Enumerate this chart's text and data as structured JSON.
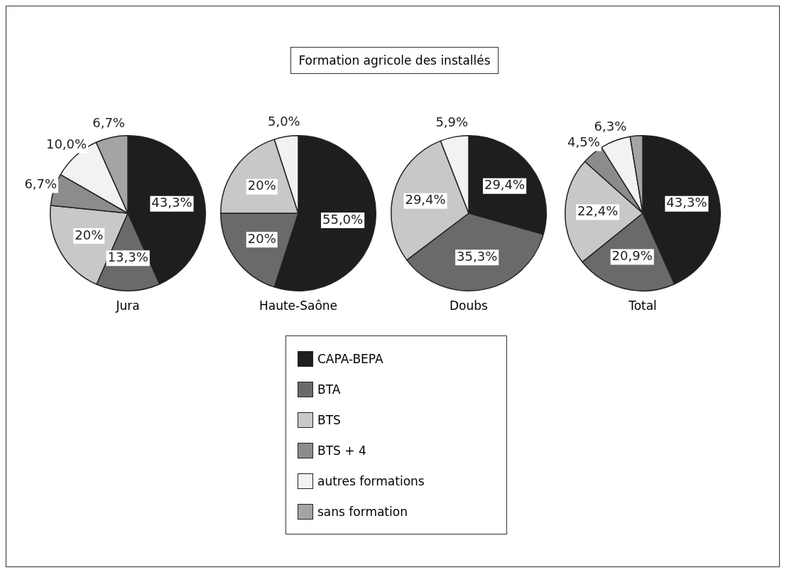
{
  "chart_data": {
    "type": "pie",
    "title": "Formation agricole des installés",
    "legend": "bottom",
    "categories": [
      "CAPA-BEPA",
      "BTA",
      "BTS",
      "BTS + 4",
      "autres formations",
      "sans formation"
    ],
    "colors": [
      "#1e1e1e",
      "#6a6a6a",
      "#c8c8c8",
      "#8c8c8c",
      "#f2f2f2",
      "#a4a4a4"
    ],
    "series": [
      {
        "name": "Jura",
        "values": [
          43.3,
          13.3,
          20,
          6.7,
          10.0,
          6.7
        ],
        "value_labels": [
          "43,3%",
          "13,3%",
          "20%",
          "6,7%",
          "10,0%",
          "6,7%"
        ]
      },
      {
        "name": "Haute-Saône",
        "values": [
          55.0,
          20,
          20,
          0,
          5.0,
          0
        ],
        "value_labels": [
          "55,0%",
          "20%",
          "20%",
          null,
          "5,0%",
          null
        ]
      },
      {
        "name": "Doubs",
        "values": [
          29.4,
          35.3,
          29.4,
          0,
          5.9,
          0
        ],
        "value_labels": [
          "29,4%",
          "35,3%",
          "29,4%",
          null,
          "5,9%",
          null
        ]
      },
      {
        "name": "Total",
        "values": [
          43.3,
          20.9,
          22.4,
          4.5,
          6.3,
          2.6
        ],
        "value_labels": [
          "43,3%",
          "20,9%",
          "22,4%",
          "4,5%",
          "6,3%",
          null
        ]
      }
    ]
  }
}
